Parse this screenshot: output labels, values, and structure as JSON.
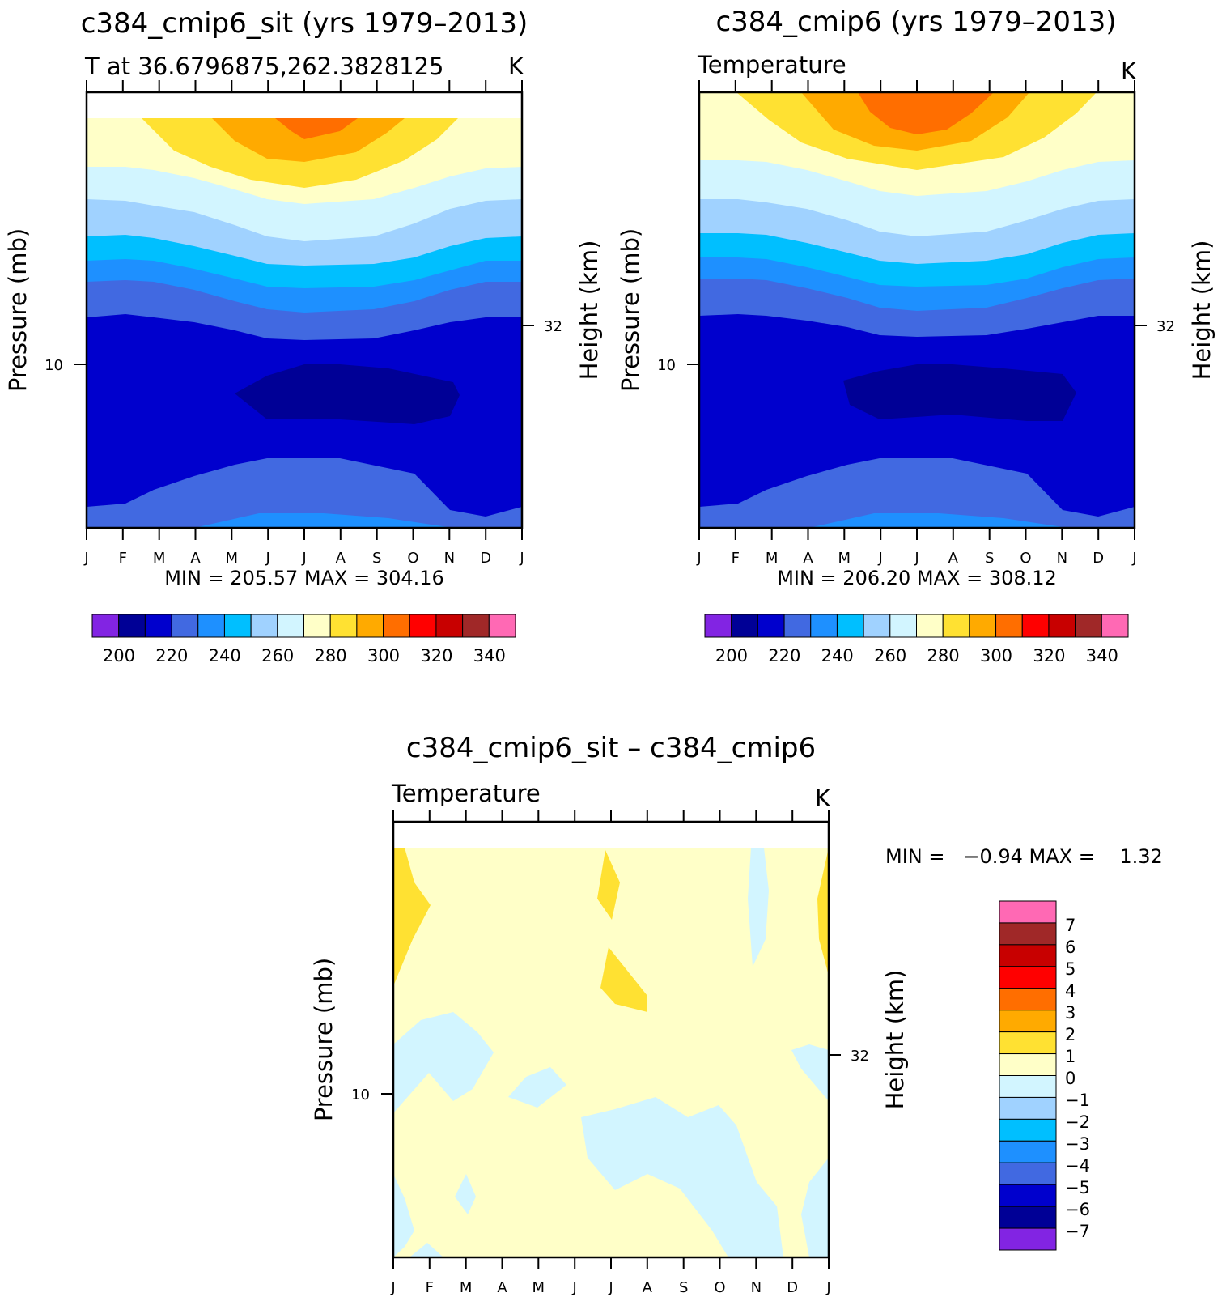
{
  "chart_data": [
    {
      "type": "contour",
      "title": "c384_cmip6_sit (yrs 1979–2013)",
      "subtitle_left": "T at 36.6796875,262.3828125",
      "subtitle_right": "K",
      "xlabel": "",
      "ylabel": "Pressure (mb)",
      "ylabel_right": "Height (km)",
      "x_ticks": [
        "J",
        "F",
        "M",
        "A",
        "M",
        "J",
        "J",
        "A",
        "S",
        "O",
        "N",
        "D",
        "J"
      ],
      "y_tick_left": "10",
      "y_tick_right": "32",
      "min": 205.57,
      "max": 304.16,
      "minmax_text": "MIN = 205.57 MAX = 304.16",
      "colorbar": {
        "orientation": "horizontal",
        "levels": [
          200,
          210,
          220,
          230,
          240,
          250,
          260,
          270,
          280,
          290,
          300,
          310,
          320,
          330,
          340
        ],
        "labels": [
          "200",
          "220",
          "240",
          "260",
          "280",
          "300",
          "320",
          "340"
        ],
        "colors": [
          "#8224e3",
          "#000096",
          "#0000cd",
          "#4169e1",
          "#1e90ff",
          "#00bfff",
          "#a0d2ff",
          "#d2f5ff",
          "#ffffc8",
          "#ffe132",
          "#ffaa00",
          "#ff6e00",
          "#ff0000",
          "#c80000",
          "#a02828",
          "#ff69b4"
        ]
      }
    },
    {
      "type": "contour",
      "title": "c384_cmip6 (yrs 1979–2013)",
      "subtitle_left": "Temperature",
      "subtitle_right": "K",
      "xlabel": "",
      "ylabel": "Pressure (mb)",
      "ylabel_right": "Height (km)",
      "x_ticks": [
        "J",
        "F",
        "M",
        "A",
        "M",
        "J",
        "J",
        "A",
        "S",
        "O",
        "N",
        "D",
        "J"
      ],
      "y_tick_left": "10",
      "y_tick_right": "32",
      "min": 206.2,
      "max": 308.12,
      "minmax_text": "MIN = 206.20 MAX = 308.12",
      "colorbar": {
        "orientation": "horizontal",
        "levels": [
          200,
          210,
          220,
          230,
          240,
          250,
          260,
          270,
          280,
          290,
          300,
          310,
          320,
          330,
          340
        ],
        "labels": [
          "200",
          "220",
          "240",
          "260",
          "280",
          "300",
          "320",
          "340"
        ],
        "colors": [
          "#8224e3",
          "#000096",
          "#0000cd",
          "#4169e1",
          "#1e90ff",
          "#00bfff",
          "#a0d2ff",
          "#d2f5ff",
          "#ffffc8",
          "#ffe132",
          "#ffaa00",
          "#ff6e00",
          "#ff0000",
          "#c80000",
          "#a02828",
          "#ff69b4"
        ]
      }
    },
    {
      "type": "contour",
      "title": "c384_cmip6_sit – c384_cmip6",
      "subtitle_left": "Temperature",
      "subtitle_right": "K",
      "xlabel": "",
      "ylabel": "Pressure (mb)",
      "ylabel_right": "Height (km)",
      "x_ticks": [
        "J",
        "F",
        "M",
        "A",
        "M",
        "J",
        "J",
        "A",
        "S",
        "O",
        "N",
        "D",
        "J"
      ],
      "y_tick_left": "10",
      "y_tick_right": "32",
      "min": -0.94,
      "max": 1.32,
      "minmax_text": "MIN =   −0.94 MAX =    1.32",
      "colorbar": {
        "orientation": "vertical",
        "levels": [
          -7,
          -6,
          -5,
          -4,
          -3,
          -2,
          -1,
          0,
          1,
          2,
          3,
          4,
          5,
          6,
          7
        ],
        "labels": [
          "7",
          "6",
          "5",
          "4",
          "3",
          "2",
          "1",
          "0",
          "−1",
          "−2",
          "−3",
          "−4",
          "−5",
          "−6",
          "−7"
        ],
        "colors": [
          "#8224e3",
          "#000096",
          "#0000cd",
          "#4169e1",
          "#1e90ff",
          "#00bfff",
          "#a0d2ff",
          "#d2f5ff",
          "#ffffc8",
          "#ffe132",
          "#ffaa00",
          "#ff6e00",
          "#ff0000",
          "#c80000",
          "#a02828",
          "#ff69b4"
        ]
      }
    }
  ]
}
